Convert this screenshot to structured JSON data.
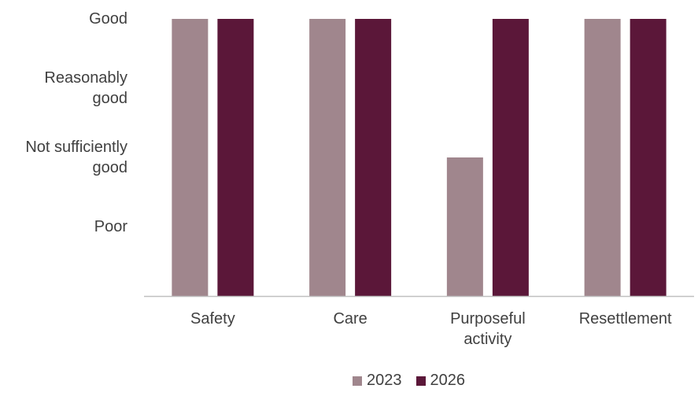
{
  "chart_data": {
    "type": "bar",
    "title": "",
    "xlabel": "",
    "ylabel": "",
    "categories": [
      "Safety",
      "Care",
      "Purposeful activity",
      "Resettlement"
    ],
    "category_lines": [
      [
        "Safety"
      ],
      [
        "Care"
      ],
      [
        "Purposeful",
        "activity"
      ],
      [
        "Resettlement"
      ]
    ],
    "y_levels": [
      {
        "label": "Poor",
        "lines": [
          "Poor"
        ],
        "value": 1
      },
      {
        "label": "Not sufficiently good",
        "lines": [
          "Not sufficiently",
          "good"
        ],
        "value": 2
      },
      {
        "label": "Reasonably good",
        "lines": [
          "Reasonably",
          "good"
        ],
        "value": 3
      },
      {
        "label": "Good",
        "lines": [
          "Good"
        ],
        "value": 4
      }
    ],
    "series": [
      {
        "name": "2023",
        "color": "#a0868d",
        "values": [
          4,
          4,
          2,
          4
        ]
      },
      {
        "name": "2026",
        "color": "#5b1739",
        "values": [
          4,
          4,
          4,
          4
        ]
      }
    ],
    "ylim": [
      0,
      4
    ],
    "grid": false,
    "legend_position": "bottom"
  }
}
